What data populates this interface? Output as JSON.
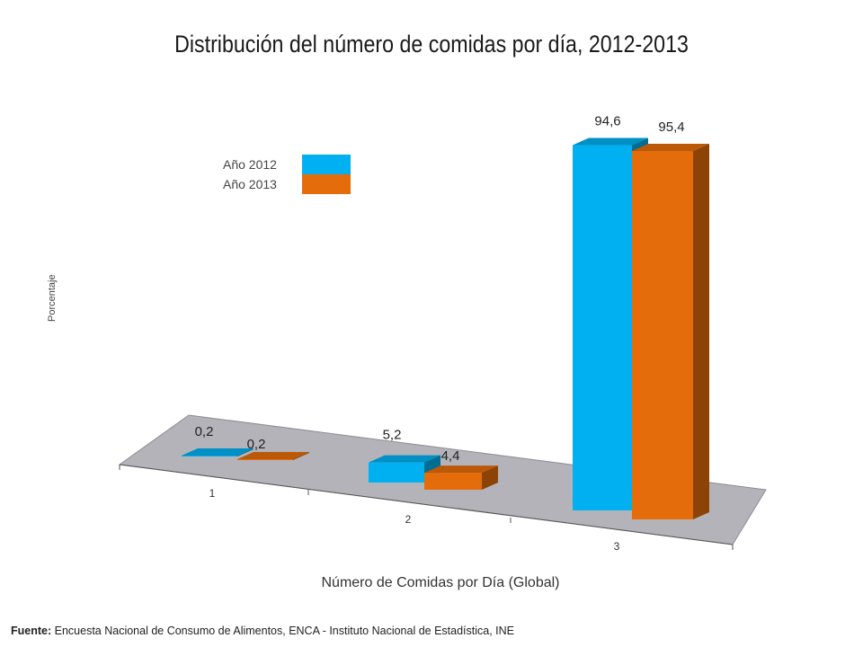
{
  "chart_data": {
    "type": "bar",
    "title": "Distribución del número de comidas por día, 2012-2013",
    "xlabel": "Número de Comidas por Día (Global)",
    "ylabel": "Porcentaje",
    "categories": [
      "1",
      "2",
      "3"
    ],
    "series": [
      {
        "name": "Año 2012",
        "values": [
          0.2,
          5.2,
          94.6
        ],
        "labels": [
          "0,2",
          "5,2",
          "94,6"
        ],
        "color": "#00b0f0"
      },
      {
        "name": "Año 2013",
        "values": [
          0.2,
          4.4,
          95.4
        ],
        "labels": [
          "0,2",
          "4,4",
          "95,4"
        ],
        "color": "#e46c0a"
      }
    ],
    "ylim": [
      0,
      100
    ],
    "legend": "top-left",
    "grid": false,
    "floor_color": "#b3b3b9"
  },
  "source": {
    "label": "Fuente:",
    "text": "Encuesta Nacional de Consumo de Alimentos, ENCA - Instituto Nacional de Estadística, INE"
  }
}
